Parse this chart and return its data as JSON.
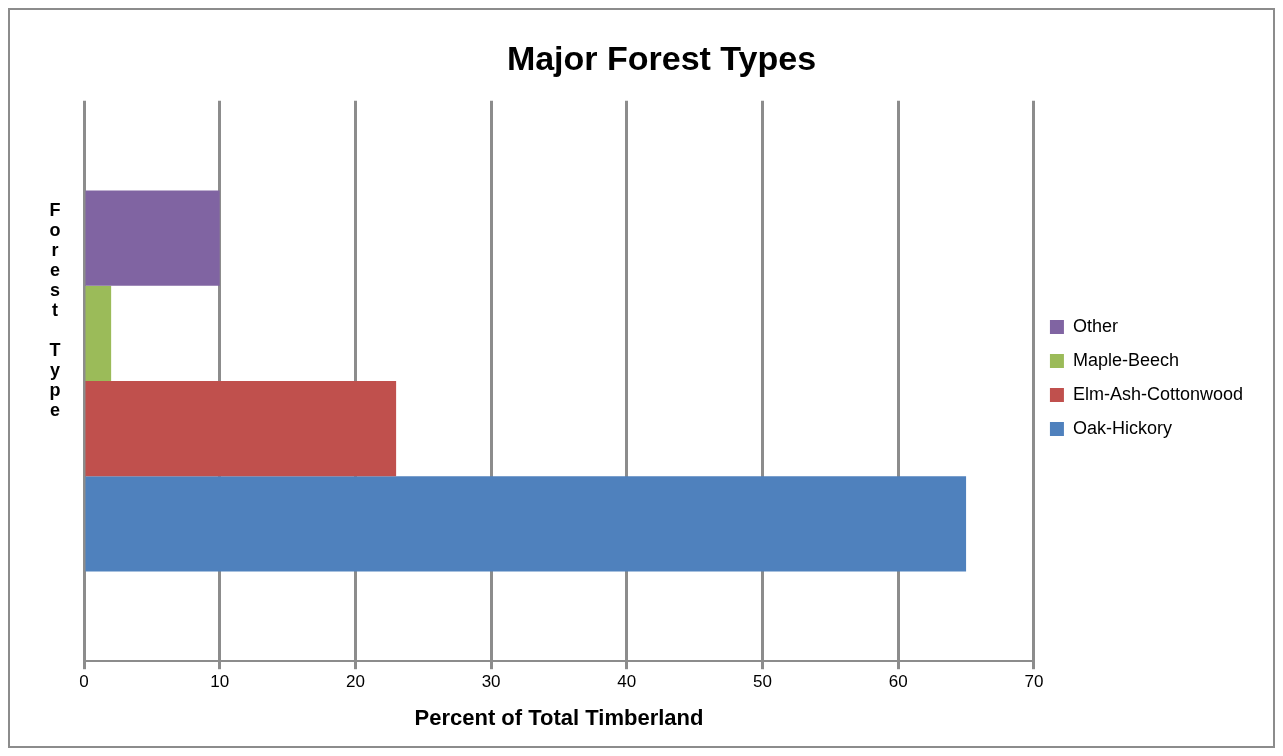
{
  "chart_data": {
    "type": "bar",
    "orientation": "horizontal",
    "title": "Major Forest Types",
    "xlabel": "Percent of Total Timberland",
    "ylabel": "Forest Type",
    "categories": [
      null
    ],
    "series": [
      {
        "name": "Other",
        "color": "#8064a2",
        "values": [
          10
        ]
      },
      {
        "name": "Maple-Beech",
        "color": "#9bbb59",
        "values": [
          2
        ]
      },
      {
        "name": "Elm-Ash-Cottonwood",
        "color": "#c0504d",
        "values": [
          23
        ]
      },
      {
        "name": "Oak-Hickory",
        "color": "#4f81bd",
        "values": [
          65
        ]
      }
    ],
    "xlim": [
      0,
      70
    ],
    "xticks": [
      0,
      10,
      20,
      30,
      40,
      50,
      60,
      70
    ],
    "grid": "x",
    "legend": "right"
  }
}
